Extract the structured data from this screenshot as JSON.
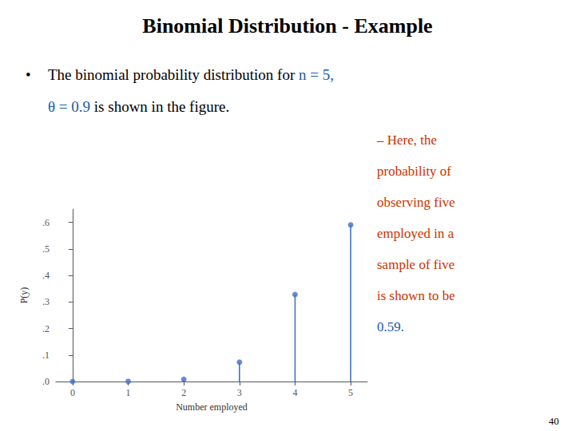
{
  "chart_data": {
    "type": "stem",
    "title": "Binomial Distribution - Example",
    "bullet": "•",
    "bullet_lines": [
      [
        {
          "text": "The binomial probability distribution for ",
          "color": "#000000"
        },
        {
          "text": "n",
          "color": "#1a5aad"
        },
        {
          "text": " = 5,",
          "color": "#1a5aad"
        }
      ],
      [
        {
          "text": "θ = 0.9",
          "color": "#1a5aad"
        },
        {
          "text": " is shown in the figure.",
          "color": "#000000"
        }
      ]
    ],
    "side_lines": [
      {
        "text": "– Here, the",
        "color": "#cc3300"
      },
      {
        "text": "probability of",
        "color": "#cc3300"
      },
      {
        "text": "observing five",
        "color": "#cc3300"
      },
      {
        "text": "employed in a",
        "color": "#cc3300"
      },
      {
        "text": "sample of five",
        "color": "#cc3300"
      },
      {
        "text": "is shown to be",
        "color": "#cc3300"
      },
      {
        "text": "0.59.",
        "color": "#1a5aad"
      }
    ],
    "page_number": "40",
    "x": [
      0,
      1,
      2,
      3,
      4,
      5
    ],
    "values": [
      1e-05,
      0.00045,
      0.0081,
      0.0729,
      0.32805,
      0.59049
    ],
    "color": "#4472c4",
    "xlabel": "Number employed",
    "ylabel": "P(y)",
    "xlim": [
      -0.3,
      5.3
    ],
    "ylim": [
      0,
      0.65
    ],
    "xticks": [
      0,
      1,
      2,
      3,
      4,
      5
    ],
    "yticks": [
      {
        "value": 0.0,
        "label": ".0"
      },
      {
        "value": 0.1,
        "label": ".1"
      },
      {
        "value": 0.2,
        "label": ".2"
      },
      {
        "value": 0.3,
        "label": ".3"
      },
      {
        "value": 0.4,
        "label": ".4"
      },
      {
        "value": 0.5,
        "label": ".5"
      },
      {
        "value": 0.6,
        "label": ".6"
      }
    ],
    "grid": false
  }
}
